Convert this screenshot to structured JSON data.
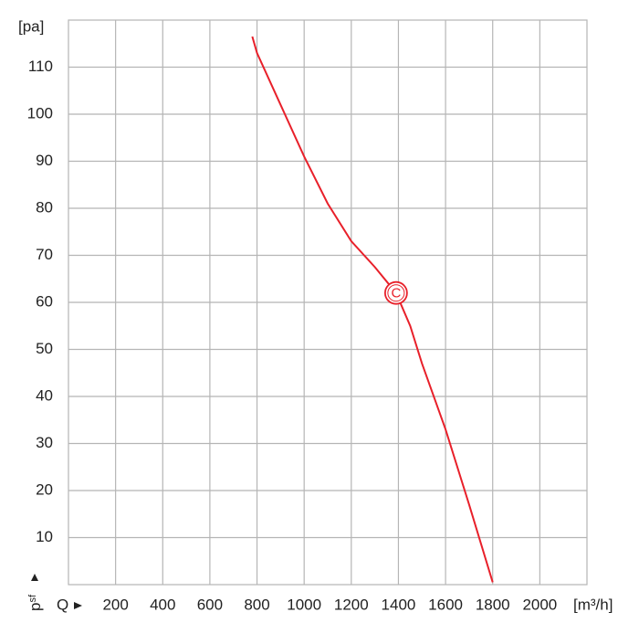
{
  "chart_data": {
    "type": "line",
    "y_label": "[pa]",
    "y_symbol": "p",
    "y_symbol_sub": "sf",
    "x_symbol": "Q",
    "x_unit": "[m³/h]",
    "xlim": [
      0,
      2200
    ],
    "ylim": [
      0,
      120
    ],
    "xticks": [
      200,
      400,
      600,
      800,
      1000,
      1200,
      1400,
      1600,
      1800,
      2000
    ],
    "yticks": [
      10,
      20,
      30,
      40,
      50,
      60,
      70,
      80,
      90,
      100,
      110
    ],
    "grid": true,
    "series": [
      {
        "color": "#e8202a",
        "x": [
          780,
          800,
          900,
          1000,
          1100,
          1200,
          1300,
          1390,
          1450,
          1500,
          1600,
          1700,
          1800
        ],
        "values": [
          116.5,
          113,
          102,
          91,
          81,
          73,
          67.5,
          62,
          55,
          47,
          33,
          17,
          0.5
        ]
      }
    ],
    "annotation": {
      "text": "C",
      "x": 1390,
      "y": 62
    }
  }
}
